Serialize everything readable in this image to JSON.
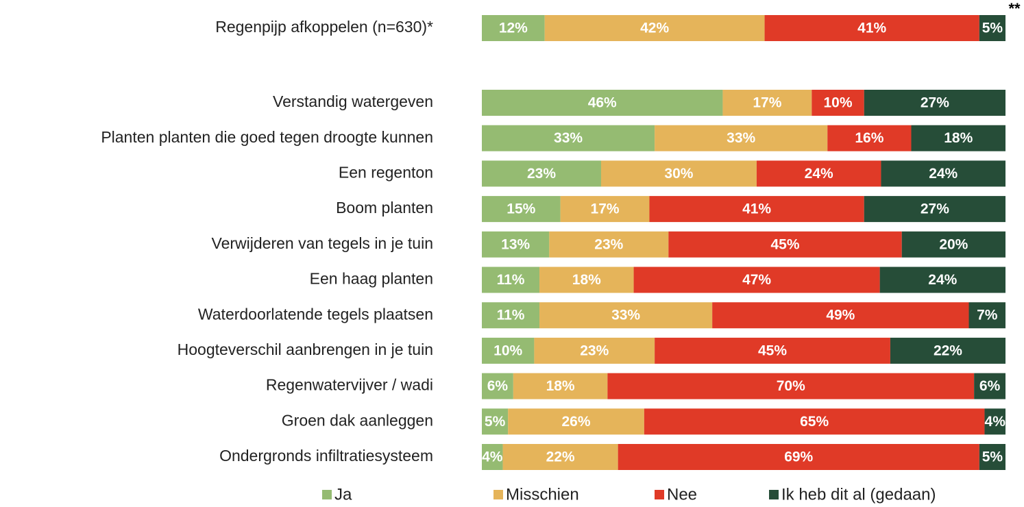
{
  "chart_data": {
    "type": "stacked-bar-horizontal",
    "annotation": "**",
    "categories": [
      "Regenpijp afkoppelen (n=630)*",
      "Verstandig watergeven",
      "Planten planten die goed tegen droogte kunnen",
      "Een regenton",
      "Boom planten",
      "Verwijderen van tegels in je tuin",
      "Een haag planten",
      "Waterdoorlatende tegels plaatsen",
      "Hoogteverschil aanbrengen in je tuin",
      "Regenwatervijver / wadi",
      "Groen dak aanleggen",
      "Ondergronds infiltratiesysteem"
    ],
    "series": [
      {
        "name": "Ja",
        "color": "#95bb72",
        "values": [
          12,
          46,
          33,
          23,
          15,
          13,
          11,
          11,
          10,
          6,
          5,
          4
        ],
        "value_labels": [
          "12%",
          "46%",
          "33%",
          "23%",
          "15%",
          "13%",
          "11%",
          "11%",
          "10%",
          "6%",
          "5%",
          "4%"
        ]
      },
      {
        "name": "Misschien",
        "color": "#e5b45a",
        "values": [
          42,
          17,
          33,
          30,
          17,
          23,
          18,
          33,
          23,
          18,
          26,
          22
        ],
        "value_labels": [
          "42%",
          "17%",
          "33%",
          "30%",
          "17%",
          "23%",
          "18%",
          "33%",
          "23%",
          "18%",
          "26%",
          "22%"
        ]
      },
      {
        "name": "Nee",
        "color": "#e03a27",
        "values": [
          41,
          10,
          16,
          24,
          41,
          45,
          47,
          49,
          45,
          70,
          65,
          69
        ],
        "value_labels": [
          "41%",
          "10%",
          "16%",
          "24%",
          "41%",
          "45%",
          "47%",
          "49%",
          "45%",
          "70%",
          "65%",
          "69%"
        ]
      },
      {
        "name": "Ik heb dit al (gedaan)",
        "color": "#264d38",
        "values": [
          5,
          27,
          18,
          24,
          27,
          20,
          24,
          7,
          22,
          6,
          4,
          5
        ],
        "value_labels": [
          "5%",
          "27%",
          "18%",
          "24%",
          "27%",
          "20%",
          "24%",
          "7%",
          "22%",
          "6%",
          "4%",
          "5%"
        ]
      }
    ],
    "legend": "bottom"
  }
}
